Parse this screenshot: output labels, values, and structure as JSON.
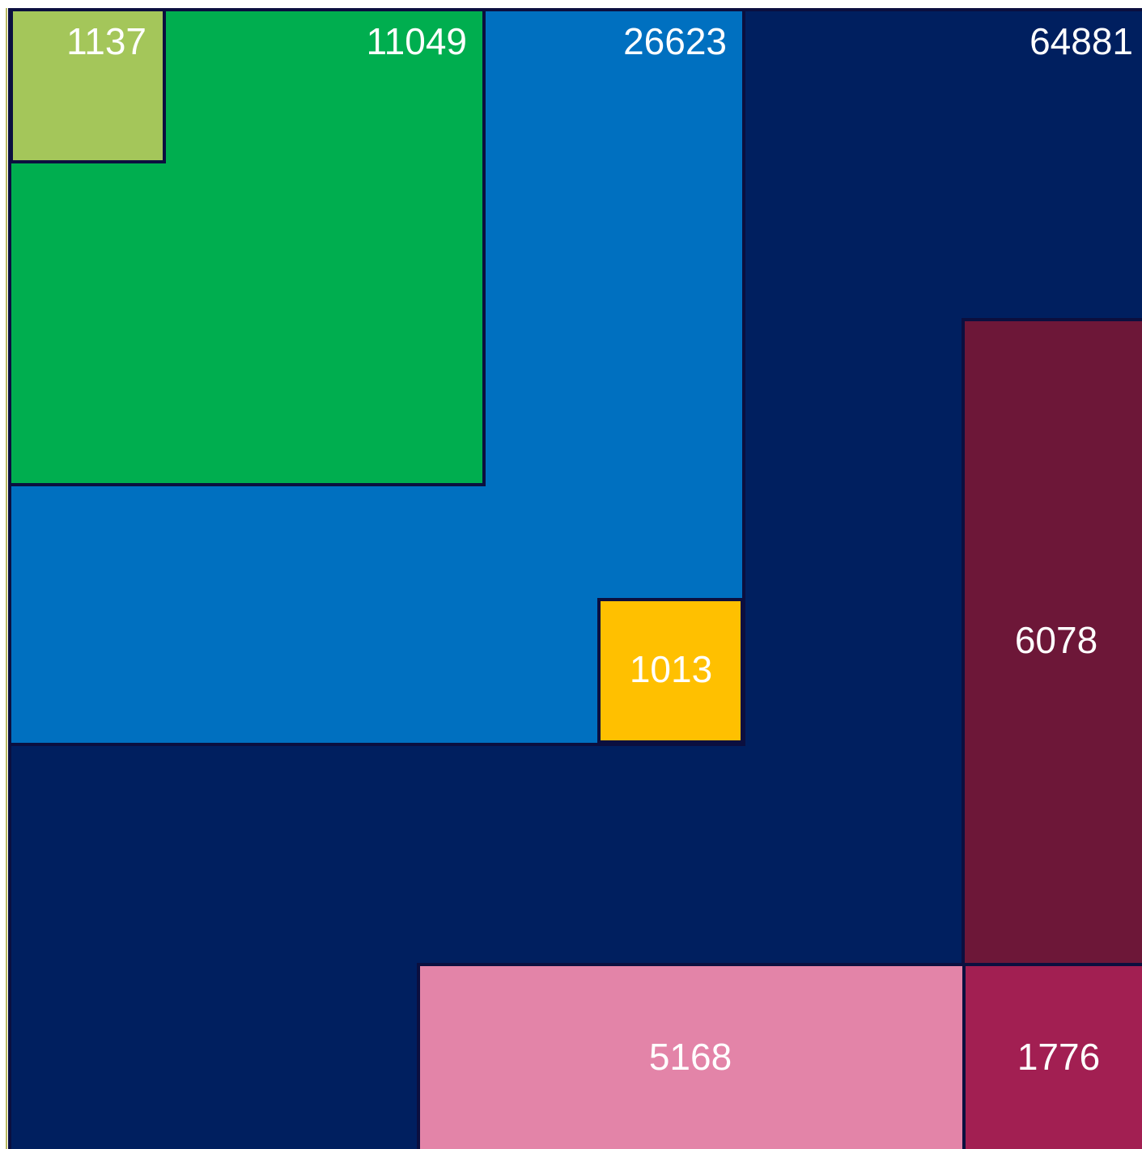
{
  "boxes": [
    {
      "label": 64881
    },
    {
      "label": 26623
    },
    {
      "label": 11049
    },
    {
      "label": 1137
    },
    {
      "label": 1013
    },
    {
      "label": 6078
    },
    {
      "label": 5168
    },
    {
      "label": 1776
    }
  ]
}
